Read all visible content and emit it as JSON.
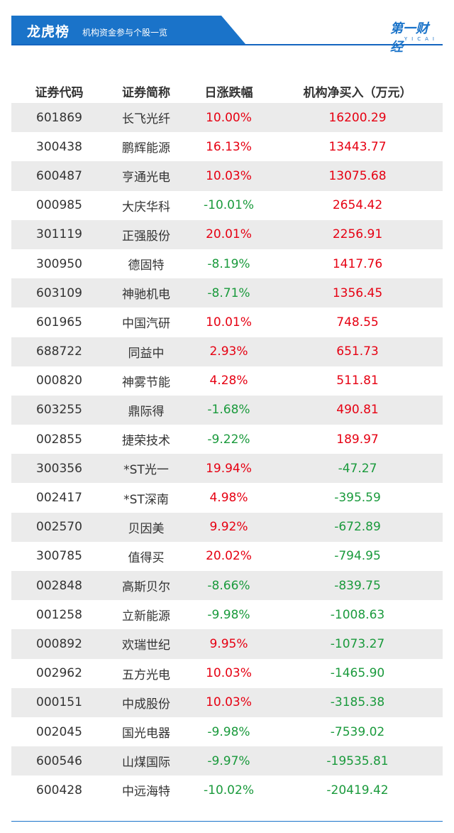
{
  "header": {
    "title": "龙虎榜",
    "subtitle": "机构资金参与个股一览",
    "logo_text": "第一财经",
    "logo_sub": "YICAI",
    "accent_color": "#1a73c9"
  },
  "table": {
    "columns": [
      "证券代码",
      "证券简称",
      "日涨跌幅",
      "机构净买入（万元）"
    ],
    "rows": [
      {
        "code": "601869",
        "name": "长飞光纤",
        "change": "10.00%",
        "net_buy": "16200.29",
        "change_dir": "up",
        "buy_dir": "up"
      },
      {
        "code": "300438",
        "name": "鹏辉能源",
        "change": "16.13%",
        "net_buy": "13443.77",
        "change_dir": "up",
        "buy_dir": "up"
      },
      {
        "code": "600487",
        "name": "亨通光电",
        "change": "10.03%",
        "net_buy": "13075.68",
        "change_dir": "up",
        "buy_dir": "up"
      },
      {
        "code": "000985",
        "name": "大庆华科",
        "change": "-10.01%",
        "net_buy": "2654.42",
        "change_dir": "down",
        "buy_dir": "up"
      },
      {
        "code": "301119",
        "name": "正强股份",
        "change": "20.01%",
        "net_buy": "2256.91",
        "change_dir": "up",
        "buy_dir": "up"
      },
      {
        "code": "300950",
        "name": "德固特",
        "change": "-8.19%",
        "net_buy": "1417.76",
        "change_dir": "down",
        "buy_dir": "up"
      },
      {
        "code": "603109",
        "name": "神驰机电",
        "change": "-8.71%",
        "net_buy": "1356.45",
        "change_dir": "down",
        "buy_dir": "up"
      },
      {
        "code": "601965",
        "name": "中国汽研",
        "change": "10.01%",
        "net_buy": "748.55",
        "change_dir": "up",
        "buy_dir": "up"
      },
      {
        "code": "688722",
        "name": "同益中",
        "change": "2.93%",
        "net_buy": "651.73",
        "change_dir": "up",
        "buy_dir": "up"
      },
      {
        "code": "000820",
        "name": "神雾节能",
        "change": "4.28%",
        "net_buy": "511.81",
        "change_dir": "up",
        "buy_dir": "up"
      },
      {
        "code": "603255",
        "name": "鼎际得",
        "change": "-1.68%",
        "net_buy": "490.81",
        "change_dir": "down",
        "buy_dir": "up"
      },
      {
        "code": "002855",
        "name": "捷荣技术",
        "change": "-9.22%",
        "net_buy": "189.97",
        "change_dir": "down",
        "buy_dir": "up"
      },
      {
        "code": "300356",
        "name": "*ST光一",
        "change": "19.94%",
        "net_buy": "-47.27",
        "change_dir": "up",
        "buy_dir": "down"
      },
      {
        "code": "002417",
        "name": "*ST深南",
        "change": "4.98%",
        "net_buy": "-395.59",
        "change_dir": "up",
        "buy_dir": "down"
      },
      {
        "code": "002570",
        "name": "贝因美",
        "change": "9.92%",
        "net_buy": "-672.89",
        "change_dir": "up",
        "buy_dir": "down"
      },
      {
        "code": "300785",
        "name": "值得买",
        "change": "20.02%",
        "net_buy": "-794.95",
        "change_dir": "up",
        "buy_dir": "down"
      },
      {
        "code": "002848",
        "name": "高斯贝尔",
        "change": "-8.66%",
        "net_buy": "-839.75",
        "change_dir": "down",
        "buy_dir": "down"
      },
      {
        "code": "001258",
        "name": "立新能源",
        "change": "-9.98%",
        "net_buy": "-1008.63",
        "change_dir": "down",
        "buy_dir": "down"
      },
      {
        "code": "000892",
        "name": "欢瑞世纪",
        "change": "9.95%",
        "net_buy": "-1073.27",
        "change_dir": "up",
        "buy_dir": "down"
      },
      {
        "code": "002962",
        "name": "五方光电",
        "change": "10.03%",
        "net_buy": "-1465.90",
        "change_dir": "up",
        "buy_dir": "down"
      },
      {
        "code": "000151",
        "name": "中成股份",
        "change": "10.03%",
        "net_buy": "-3185.38",
        "change_dir": "up",
        "buy_dir": "down"
      },
      {
        "code": "002045",
        "name": "国光电器",
        "change": "-9.98%",
        "net_buy": "-7539.02",
        "change_dir": "down",
        "buy_dir": "down"
      },
      {
        "code": "600546",
        "name": "山煤国际",
        "change": "-9.97%",
        "net_buy": "-19535.81",
        "change_dir": "down",
        "buy_dir": "down"
      },
      {
        "code": "600428",
        "name": "中远海特",
        "change": "-10.02%",
        "net_buy": "-20419.42",
        "change_dir": "down",
        "buy_dir": "down"
      }
    ]
  },
  "colors": {
    "up": "#e60012",
    "down": "#1a9a3c",
    "stripe": "#ebebeb"
  }
}
